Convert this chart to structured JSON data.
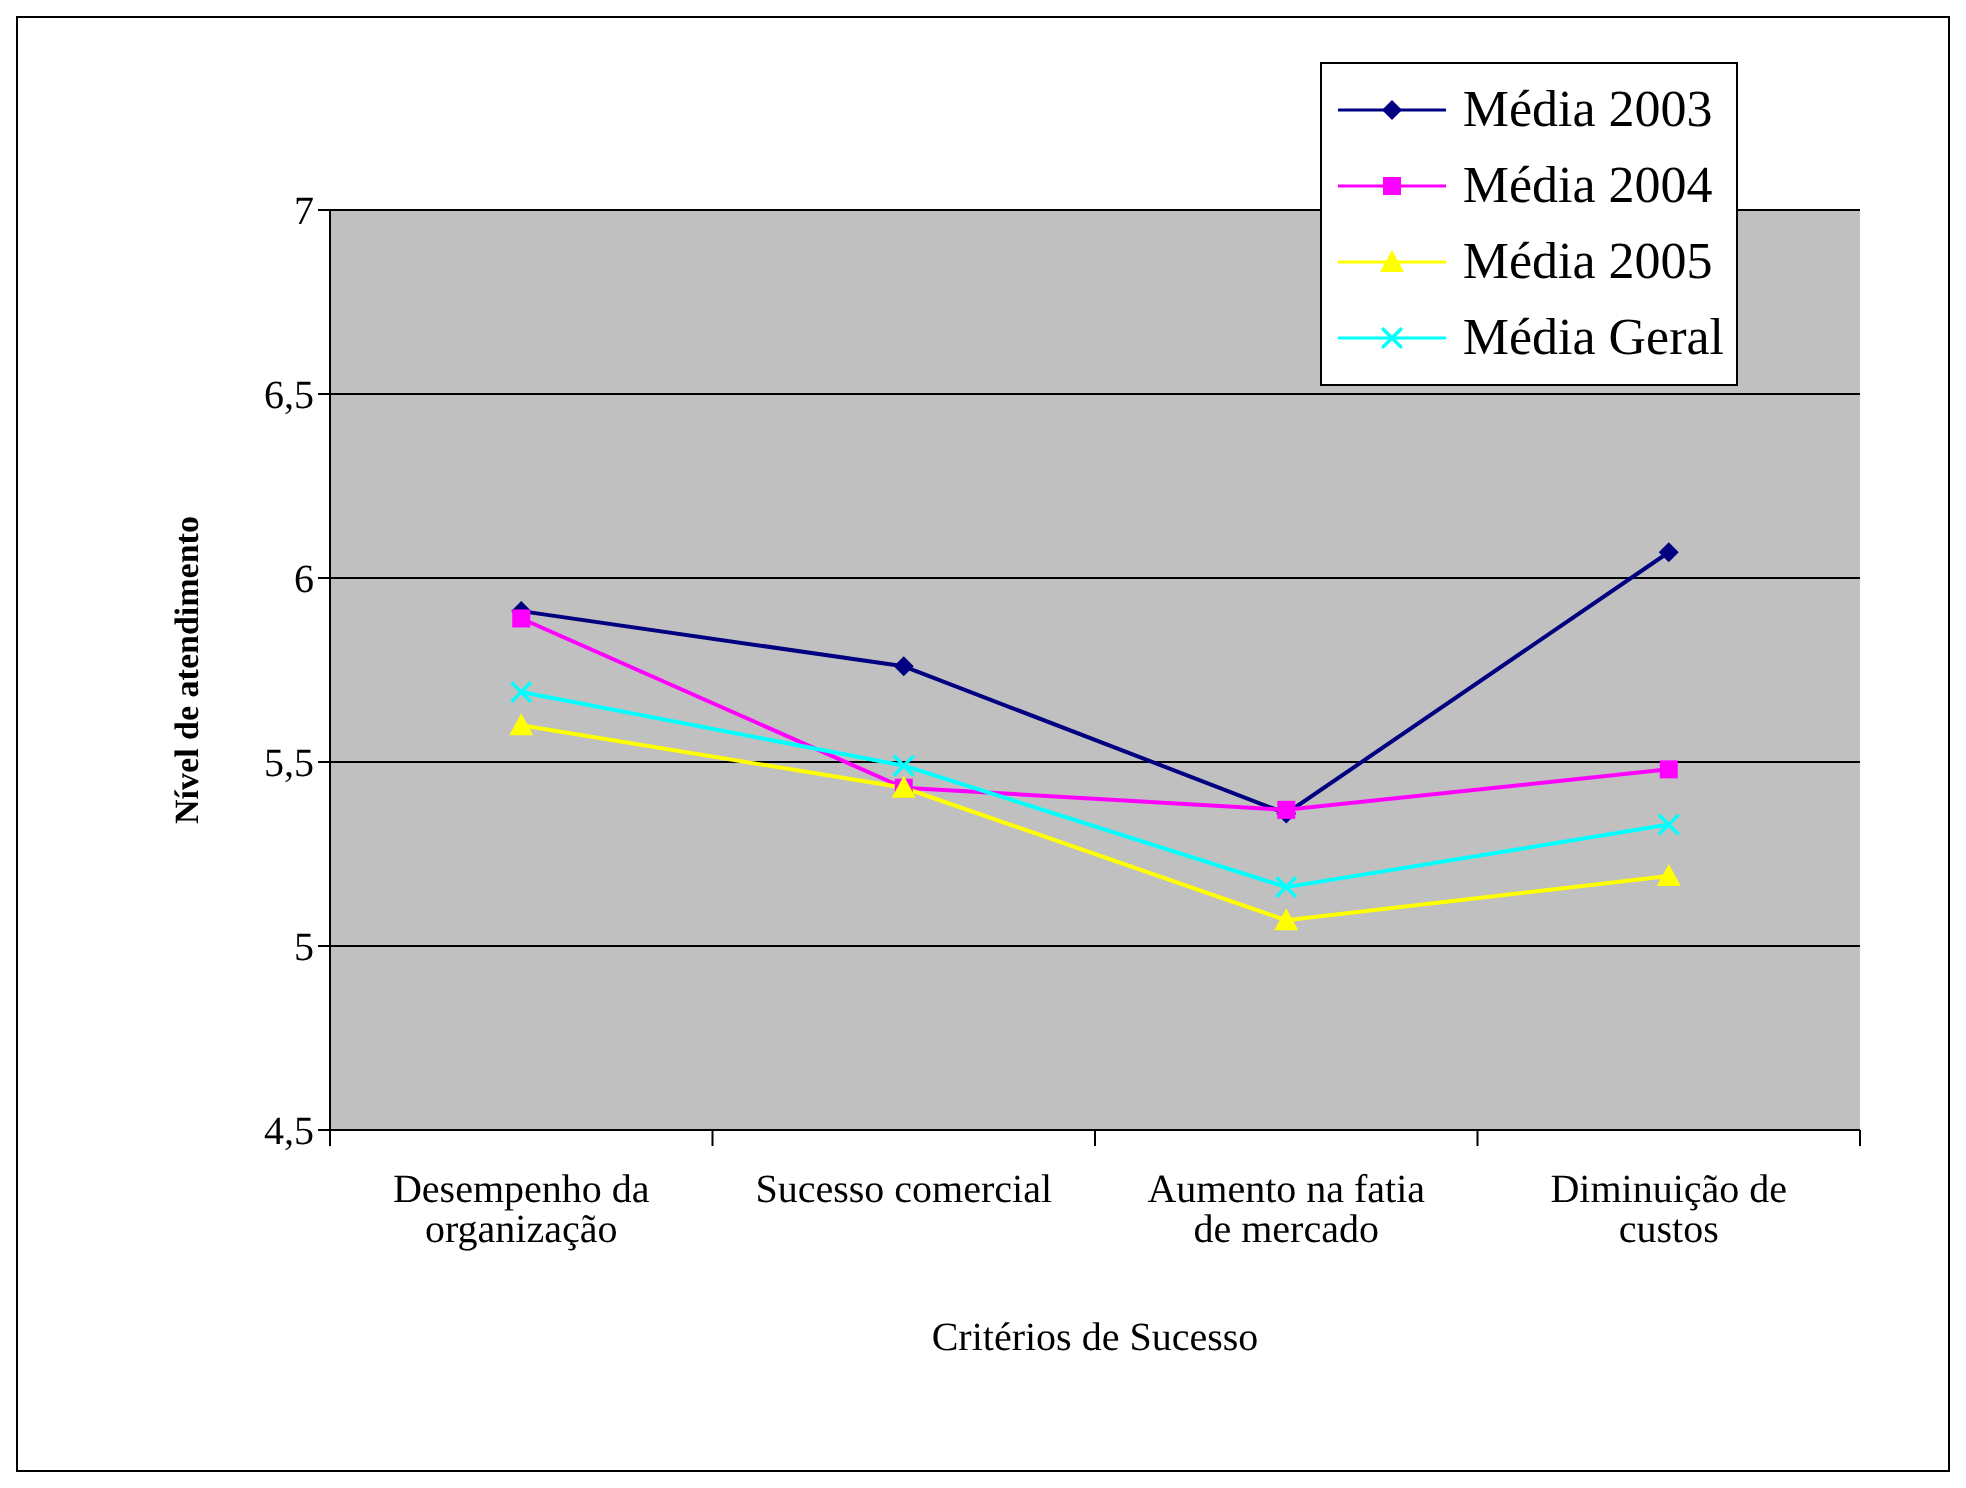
{
  "chart_data": {
    "type": "line",
    "xlabel": "Critérios de Sucesso",
    "ylabel": "Nível de atendimento",
    "categories": [
      "Desempenho da organização",
      "Sucesso comercial",
      "Aumento na fatia de mercado",
      "Diminuição de custos"
    ],
    "series": [
      {
        "name": "Média 2003",
        "color": "#000080",
        "marker": "diamond",
        "values": [
          5.91,
          5.76,
          5.36,
          6.07
        ]
      },
      {
        "name": "Média 2004",
        "color": "#ff00ff",
        "marker": "square",
        "values": [
          5.89,
          5.43,
          5.37,
          5.48
        ]
      },
      {
        "name": "Média 2005",
        "color": "#ffff00",
        "marker": "triangle",
        "values": [
          5.6,
          5.43,
          5.07,
          5.19
        ]
      },
      {
        "name": "Média Geral",
        "color": "#00ffff",
        "marker": "cross",
        "values": [
          5.69,
          5.49,
          5.16,
          5.33
        ]
      }
    ],
    "ylim": [
      4.5,
      7
    ],
    "yticks": [
      {
        "value": 4.5,
        "label": "4,5"
      },
      {
        "value": 5,
        "label": "5"
      },
      {
        "value": 5.5,
        "label": "5,5"
      },
      {
        "value": 6,
        "label": "6"
      },
      {
        "value": 6.5,
        "label": "6,5"
      },
      {
        "value": 7,
        "label": "7"
      }
    ],
    "grid": "y",
    "legend": "top right"
  }
}
